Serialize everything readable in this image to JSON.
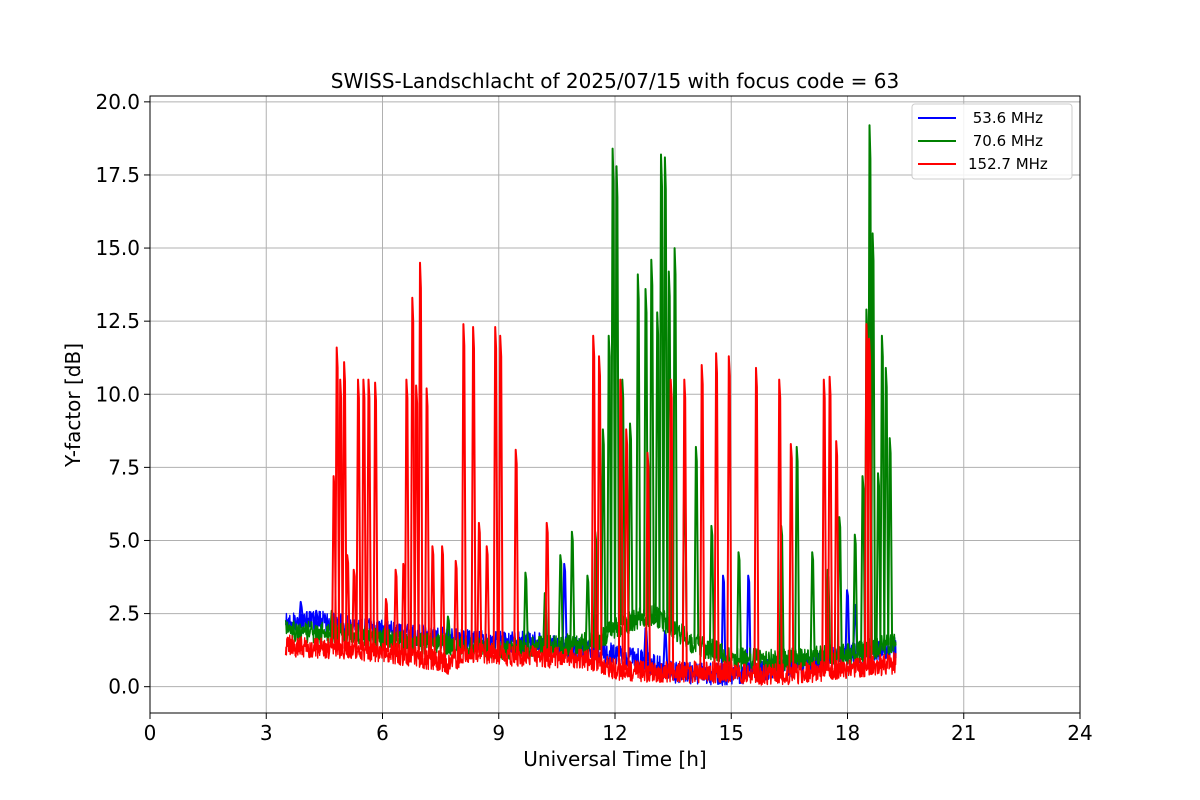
{
  "chart_data": {
    "type": "line",
    "title": "SWISS-Landschlacht of 2025/07/15 with focus code = 63",
    "xlabel": "Universal Time [h]",
    "ylabel": "Y-factor [dB]",
    "xlim": [
      0,
      24
    ],
    "ylim": [
      -0.9,
      20.2
    ],
    "xticks": [
      0,
      3,
      6,
      9,
      12,
      15,
      18,
      21,
      24
    ],
    "xtick_labels": [
      "0",
      "3",
      "6",
      "9",
      "12",
      "15",
      "18",
      "21",
      "24"
    ],
    "yticks": [
      0.0,
      2.5,
      5.0,
      7.5,
      10.0,
      12.5,
      15.0,
      17.5,
      20.0
    ],
    "ytick_labels": [
      "0.0",
      "2.5",
      "5.0",
      "7.5",
      "10.0",
      "12.5",
      "15.0",
      "17.5",
      "20.0"
    ],
    "grid": true,
    "legend_position": "top-right",
    "series": [
      {
        "name": " 53.6 MHz",
        "color": "#0000ff",
        "baseline": [
          [
            3.5,
            2.2
          ],
          [
            4.5,
            2.2
          ],
          [
            6.0,
            1.9
          ],
          [
            8.0,
            1.6
          ],
          [
            10.0,
            1.5
          ],
          [
            11.5,
            1.2
          ],
          [
            12.5,
            1.0
          ],
          [
            13.5,
            0.5
          ],
          [
            15.0,
            0.4
          ],
          [
            16.0,
            0.6
          ],
          [
            17.0,
            0.8
          ],
          [
            18.0,
            1.1
          ],
          [
            19.25,
            1.3
          ]
        ],
        "spikes": [
          [
            3.9,
            2.9
          ],
          [
            4.3,
            2.6
          ],
          [
            10.7,
            4.2
          ],
          [
            11.5,
            2.5
          ],
          [
            12.8,
            2.0
          ],
          [
            13.3,
            1.9
          ],
          [
            14.8,
            3.8
          ],
          [
            15.45,
            3.8
          ],
          [
            18.0,
            3.3
          ],
          [
            18.2,
            2.8
          ]
        ]
      },
      {
        "name": " 70.6 MHz",
        "color": "#008000",
        "baseline": [
          [
            3.5,
            1.9
          ],
          [
            5.0,
            1.8
          ],
          [
            7.0,
            1.5
          ],
          [
            9.0,
            1.3
          ],
          [
            10.5,
            1.4
          ],
          [
            11.5,
            1.5
          ],
          [
            12.0,
            2.0
          ],
          [
            13.0,
            2.5
          ],
          [
            14.0,
            1.5
          ],
          [
            15.0,
            1.0
          ],
          [
            16.0,
            0.9
          ],
          [
            17.0,
            1.0
          ],
          [
            18.0,
            1.1
          ],
          [
            19.25,
            1.5
          ]
        ],
        "spikes": [
          [
            4.7,
            2.6
          ],
          [
            7.7,
            2.4
          ],
          [
            9.7,
            3.9
          ],
          [
            10.2,
            3.2
          ],
          [
            10.6,
            4.5
          ],
          [
            10.9,
            5.3
          ],
          [
            11.3,
            3.8
          ],
          [
            11.5,
            5.3
          ],
          [
            11.7,
            8.8
          ],
          [
            11.85,
            12.0
          ],
          [
            11.95,
            18.4
          ],
          [
            12.05,
            17.8
          ],
          [
            12.2,
            10.5
          ],
          [
            12.4,
            9.0
          ],
          [
            12.6,
            14.1
          ],
          [
            12.8,
            13.6
          ],
          [
            12.95,
            14.6
          ],
          [
            13.1,
            12.8
          ],
          [
            13.2,
            18.2
          ],
          [
            13.3,
            18.1
          ],
          [
            13.4,
            14.2
          ],
          [
            13.55,
            15.0
          ],
          [
            13.8,
            7.5
          ],
          [
            14.1,
            8.2
          ],
          [
            14.5,
            5.5
          ],
          [
            15.2,
            4.6
          ],
          [
            16.3,
            5.5
          ],
          [
            16.7,
            8.2
          ],
          [
            17.1,
            4.6
          ],
          [
            17.5,
            4.0
          ],
          [
            17.8,
            5.8
          ],
          [
            18.2,
            5.2
          ],
          [
            18.4,
            7.2
          ],
          [
            18.5,
            12.9
          ],
          [
            18.58,
            19.2
          ],
          [
            18.66,
            15.5
          ],
          [
            18.8,
            7.3
          ],
          [
            18.9,
            12.0
          ],
          [
            19.0,
            10.9
          ],
          [
            19.1,
            8.5
          ]
        ]
      },
      {
        "name": "152.7 MHz",
        "color": "#ff0000",
        "baseline": [
          [
            3.5,
            1.4
          ],
          [
            5.0,
            1.3
          ],
          [
            6.0,
            1.2
          ],
          [
            7.0,
            1.0
          ],
          [
            7.7,
            0.8
          ],
          [
            8.2,
            1.2
          ],
          [
            9.0,
            1.1
          ],
          [
            10.5,
            1.0
          ],
          [
            11.5,
            0.9
          ],
          [
            12.0,
            0.6
          ],
          [
            13.0,
            0.5
          ],
          [
            14.0,
            0.5
          ],
          [
            15.0,
            0.5
          ],
          [
            16.0,
            0.4
          ],
          [
            17.0,
            0.5
          ],
          [
            18.0,
            0.6
          ],
          [
            19.25,
            0.8
          ]
        ],
        "spikes": [
          [
            4.75,
            7.2
          ],
          [
            4.83,
            11.6
          ],
          [
            4.92,
            10.5
          ],
          [
            5.02,
            11.1
          ],
          [
            5.1,
            4.5
          ],
          [
            5.27,
            4.0
          ],
          [
            5.38,
            10.5
          ],
          [
            5.52,
            10.5
          ],
          [
            5.65,
            10.5
          ],
          [
            5.82,
            10.4
          ],
          [
            6.1,
            3.0
          ],
          [
            6.35,
            4.0
          ],
          [
            6.55,
            4.2
          ],
          [
            6.63,
            10.5
          ],
          [
            6.78,
            13.3
          ],
          [
            6.88,
            10.3
          ],
          [
            6.98,
            14.5
          ],
          [
            7.15,
            10.2
          ],
          [
            7.3,
            4.8
          ],
          [
            7.55,
            4.8
          ],
          [
            7.9,
            4.3
          ],
          [
            8.1,
            12.4
          ],
          [
            8.35,
            12.3
          ],
          [
            8.5,
            5.6
          ],
          [
            8.7,
            4.8
          ],
          [
            8.92,
            12.3
          ],
          [
            9.05,
            12.0
          ],
          [
            9.45,
            8.1
          ],
          [
            10.25,
            5.6
          ],
          [
            11.45,
            12.0
          ],
          [
            11.6,
            11.3
          ],
          [
            12.15,
            10.5
          ],
          [
            12.3,
            8.8
          ],
          [
            12.85,
            8.0
          ],
          [
            13.45,
            10.5
          ],
          [
            13.8,
            10.5
          ],
          [
            14.25,
            11.0
          ],
          [
            14.62,
            11.4
          ],
          [
            14.95,
            11.3
          ],
          [
            15.65,
            10.9
          ],
          [
            16.25,
            10.5
          ],
          [
            16.55,
            8.3
          ],
          [
            17.4,
            10.5
          ],
          [
            17.55,
            10.6
          ],
          [
            17.72,
            8.4
          ],
          [
            18.5,
            12.4
          ],
          [
            18.57,
            11.9
          ]
        ]
      }
    ]
  }
}
